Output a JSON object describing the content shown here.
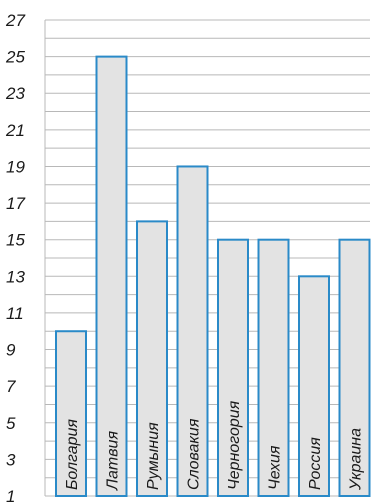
{
  "chart_data": {
    "type": "bar",
    "categories": [
      "Болгария",
      "Латвия",
      "Румыния",
      "Словакия",
      "Черногория",
      "Чехия",
      "Россия",
      "Украина"
    ],
    "values": [
      10,
      25,
      16,
      19,
      15,
      15,
      13,
      15
    ],
    "title": "",
    "xlabel": "",
    "ylabel": "",
    "ylim": [
      1,
      27
    ],
    "yticks": [
      1,
      3,
      5,
      7,
      9,
      11,
      13,
      15,
      17,
      19,
      21,
      23,
      25,
      27
    ],
    "ytick_labels": [
      "1",
      "3",
      "5",
      "7",
      "9",
      "11",
      "13",
      "15",
      "17",
      "19",
      "21",
      "23",
      "25",
      "27"
    ],
    "grid": true,
    "category_labels_rotated": true,
    "colors": {
      "bar_fill": "#e3e3e3",
      "bar_stroke": "#2a8ac8",
      "grid": "#b8b8b8"
    }
  }
}
